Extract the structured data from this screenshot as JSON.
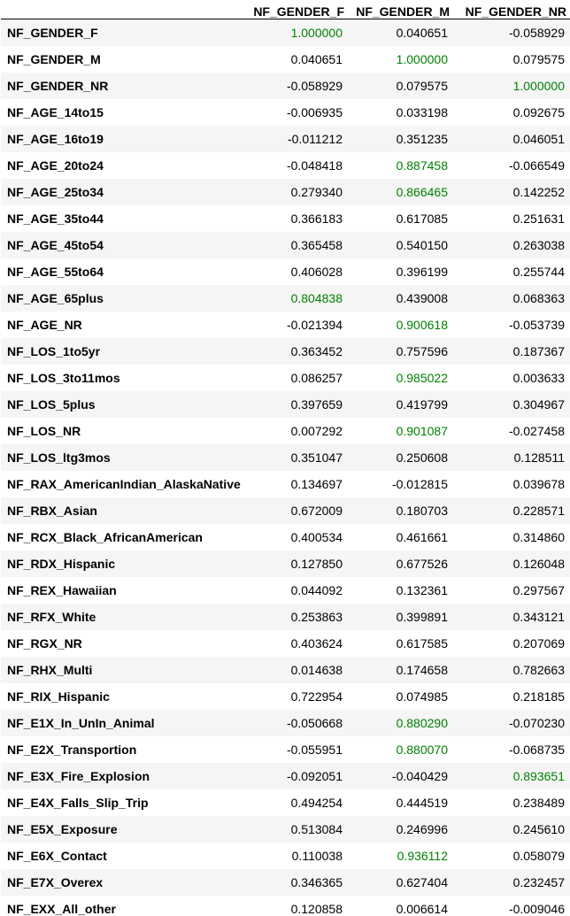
{
  "columns": [
    "",
    "NF_GENDER_F",
    "NF_GENDER_M",
    "NF_GENDER_NR"
  ],
  "highlight_color": "#008000",
  "rows": [
    {
      "label": "NF_GENDER_F",
      "values": [
        "1.000000",
        "0.040651",
        "-0.058929"
      ],
      "highlight": [
        true,
        false,
        false
      ]
    },
    {
      "label": "NF_GENDER_M",
      "values": [
        "0.040651",
        "1.000000",
        "0.079575"
      ],
      "highlight": [
        false,
        true,
        false
      ]
    },
    {
      "label": "NF_GENDER_NR",
      "values": [
        "-0.058929",
        "0.079575",
        "1.000000"
      ],
      "highlight": [
        false,
        false,
        true
      ]
    },
    {
      "label": "NF_AGE_14to15",
      "values": [
        "-0.006935",
        "0.033198",
        "0.092675"
      ],
      "highlight": [
        false,
        false,
        false
      ]
    },
    {
      "label": "NF_AGE_16to19",
      "values": [
        "-0.011212",
        "0.351235",
        "0.046051"
      ],
      "highlight": [
        false,
        false,
        false
      ]
    },
    {
      "label": "NF_AGE_20to24",
      "values": [
        "-0.048418",
        "0.887458",
        "-0.066549"
      ],
      "highlight": [
        false,
        true,
        false
      ]
    },
    {
      "label": "NF_AGE_25to34",
      "values": [
        "0.279340",
        "0.866465",
        "0.142252"
      ],
      "highlight": [
        false,
        true,
        false
      ]
    },
    {
      "label": "NF_AGE_35to44",
      "values": [
        "0.366183",
        "0.617085",
        "0.251631"
      ],
      "highlight": [
        false,
        false,
        false
      ]
    },
    {
      "label": "NF_AGE_45to54",
      "values": [
        "0.365458",
        "0.540150",
        "0.263038"
      ],
      "highlight": [
        false,
        false,
        false
      ]
    },
    {
      "label": "NF_AGE_55to64",
      "values": [
        "0.406028",
        "0.396199",
        "0.255744"
      ],
      "highlight": [
        false,
        false,
        false
      ]
    },
    {
      "label": "NF_AGE_65plus",
      "values": [
        "0.804838",
        "0.439008",
        "0.068363"
      ],
      "highlight": [
        true,
        false,
        false
      ]
    },
    {
      "label": "NF_AGE_NR",
      "values": [
        "-0.021394",
        "0.900618",
        "-0.053739"
      ],
      "highlight": [
        false,
        true,
        false
      ]
    },
    {
      "label": "NF_LOS_1to5yr",
      "values": [
        "0.363452",
        "0.757596",
        "0.187367"
      ],
      "highlight": [
        false,
        false,
        false
      ]
    },
    {
      "label": "NF_LOS_3to11mos",
      "values": [
        "0.086257",
        "0.985022",
        "0.003633"
      ],
      "highlight": [
        false,
        true,
        false
      ]
    },
    {
      "label": "NF_LOS_5plus",
      "values": [
        "0.397659",
        "0.419799",
        "0.304967"
      ],
      "highlight": [
        false,
        false,
        false
      ]
    },
    {
      "label": "NF_LOS_NR",
      "values": [
        "0.007292",
        "0.901087",
        "-0.027458"
      ],
      "highlight": [
        false,
        true,
        false
      ]
    },
    {
      "label": "NF_LOS_ltg3mos",
      "values": [
        "0.351047",
        "0.250608",
        "0.128511"
      ],
      "highlight": [
        false,
        false,
        false
      ]
    },
    {
      "label": "NF_RAX_AmericanIndian_AlaskaNative",
      "values": [
        "0.134697",
        "-0.012815",
        "0.039678"
      ],
      "highlight": [
        false,
        false,
        false
      ]
    },
    {
      "label": "NF_RBX_Asian",
      "values": [
        "0.672009",
        "0.180703",
        "0.228571"
      ],
      "highlight": [
        false,
        false,
        false
      ]
    },
    {
      "label": "NF_RCX_Black_AfricanAmerican",
      "values": [
        "0.400534",
        "0.461661",
        "0.314860"
      ],
      "highlight": [
        false,
        false,
        false
      ]
    },
    {
      "label": "NF_RDX_Hispanic",
      "values": [
        "0.127850",
        "0.677526",
        "0.126048"
      ],
      "highlight": [
        false,
        false,
        false
      ]
    },
    {
      "label": "NF_REX_Hawaiian",
      "values": [
        "0.044092",
        "0.132361",
        "0.297567"
      ],
      "highlight": [
        false,
        false,
        false
      ]
    },
    {
      "label": "NF_RFX_White",
      "values": [
        "0.253863",
        "0.399891",
        "0.343121"
      ],
      "highlight": [
        false,
        false,
        false
      ]
    },
    {
      "label": "NF_RGX_NR",
      "values": [
        "0.403624",
        "0.617585",
        "0.207069"
      ],
      "highlight": [
        false,
        false,
        false
      ]
    },
    {
      "label": "NF_RHX_Multi",
      "values": [
        "0.014638",
        "0.174658",
        "0.782663"
      ],
      "highlight": [
        false,
        false,
        false
      ]
    },
    {
      "label": "NF_RIX_Hispanic",
      "values": [
        "0.722954",
        "0.074985",
        "0.218185"
      ],
      "highlight": [
        false,
        false,
        false
      ]
    },
    {
      "label": "NF_E1X_In_UnIn_Animal",
      "values": [
        "-0.050668",
        "0.880290",
        "-0.070230"
      ],
      "highlight": [
        false,
        true,
        false
      ]
    },
    {
      "label": "NF_E2X_Transportion",
      "values": [
        "-0.055951",
        "0.880070",
        "-0.068735"
      ],
      "highlight": [
        false,
        true,
        false
      ]
    },
    {
      "label": "NF_E3X_Fire_Explosion",
      "values": [
        "-0.092051",
        "-0.040429",
        "0.893651"
      ],
      "highlight": [
        false,
        false,
        true
      ]
    },
    {
      "label": "NF_E4X_Falls_Slip_Trip",
      "values": [
        "0.494254",
        "0.444519",
        "0.238489"
      ],
      "highlight": [
        false,
        false,
        false
      ]
    },
    {
      "label": "NF_E5X_Exposure",
      "values": [
        "0.513084",
        "0.246996",
        "0.245610"
      ],
      "highlight": [
        false,
        false,
        false
      ]
    },
    {
      "label": "NF_E6X_Contact",
      "values": [
        "0.110038",
        "0.936112",
        "0.058079"
      ],
      "highlight": [
        false,
        true,
        false
      ]
    },
    {
      "label": "NF_E7X_Overex",
      "values": [
        "0.346365",
        "0.627404",
        "0.232457"
      ],
      "highlight": [
        false,
        false,
        false
      ]
    },
    {
      "label": "NF_EXX_All_other",
      "values": [
        "0.120858",
        "0.006614",
        "-0.009046"
      ],
      "highlight": [
        false,
        false,
        false
      ]
    }
  ]
}
